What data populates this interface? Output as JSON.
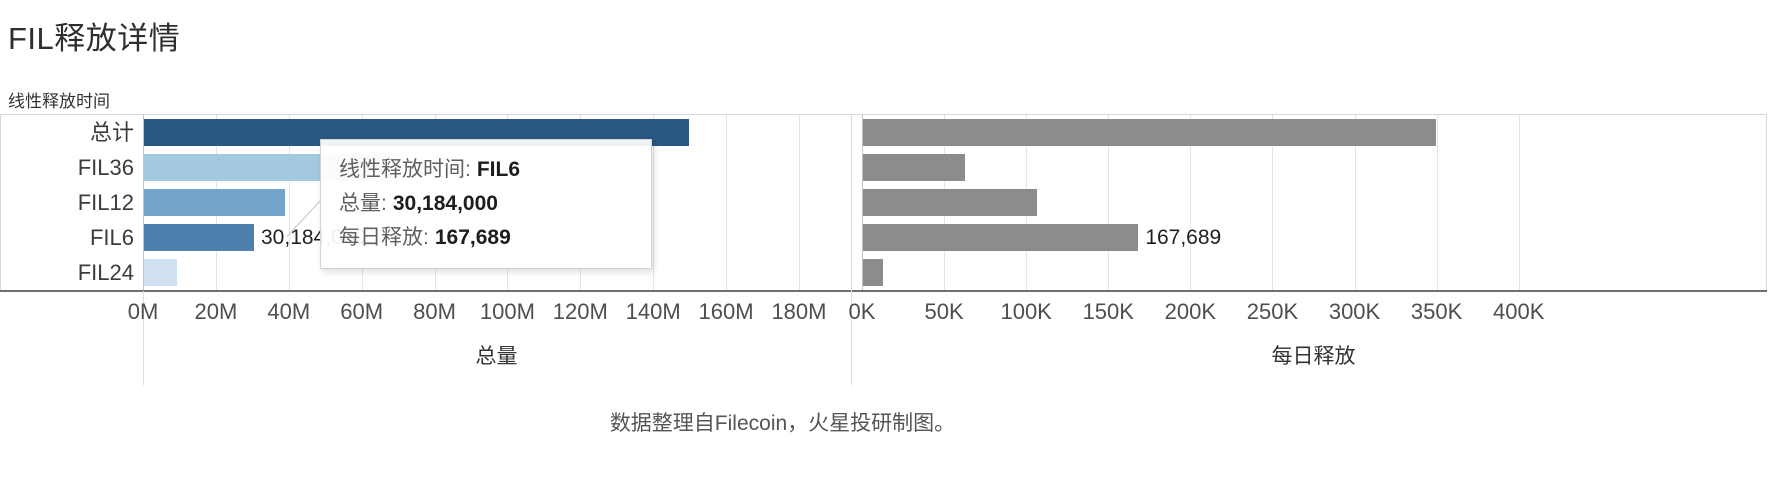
{
  "header": {
    "title": "FIL释放详情"
  },
  "footer": {
    "text": "数据整理自Filecoin，火星投研制图。"
  },
  "chart_data": {
    "type": "bar",
    "orientation": "horizontal",
    "row_field": "线性释放时间",
    "grid": true,
    "legend": "none",
    "categories": [
      "总计",
      "FIL36",
      "FIL12",
      "FIL6",
      "FIL24"
    ],
    "series": [
      {
        "name": "总量",
        "values": [
          149600000,
          68000000,
          38600000,
          30184000,
          9000000
        ],
        "bar_colors": [
          "#2a5783",
          "#a3c9e1",
          "#73a3c9",
          "#4e80ad",
          "#cfe1f0"
        ],
        "xlim": [
          0,
          194000000
        ],
        "ticks": {
          "labels": [
            "0M",
            "20M",
            "40M",
            "60M",
            "80M",
            "100M",
            "120M",
            "140M",
            "160M",
            "180M"
          ],
          "values": [
            0,
            20000000,
            40000000,
            60000000,
            80000000,
            100000000,
            120000000,
            140000000,
            160000000,
            180000000
          ]
        },
        "data_labels": [
          "",
          "",
          "",
          "30,184,000",
          ""
        ]
      },
      {
        "name": "每日释放",
        "values": [
          349000,
          62000,
          106000,
          167689,
          12300
        ],
        "bar_colors": [
          "#8c8c8c",
          "#8c8c8c",
          "#8c8c8c",
          "#8c8c8c",
          "#8c8c8c"
        ],
        "xlim": [
          0,
          550000
        ],
        "ticks": {
          "labels": [
            "0K",
            "50K",
            "100K",
            "150K",
            "200K",
            "250K",
            "300K",
            "350K",
            "400K"
          ],
          "values": [
            0,
            50000,
            100000,
            150000,
            200000,
            250000,
            300000,
            350000,
            400000
          ]
        },
        "data_labels": [
          "",
          "",
          "",
          "167,689",
          ""
        ]
      }
    ],
    "tooltip": {
      "lines": [
        {
          "label": "线性释放时间:",
          "value": "FIL6"
        },
        {
          "label": "总量:",
          "value": "30,184,000"
        },
        {
          "label": "每日释放:",
          "value": "167,689"
        }
      ]
    }
  }
}
